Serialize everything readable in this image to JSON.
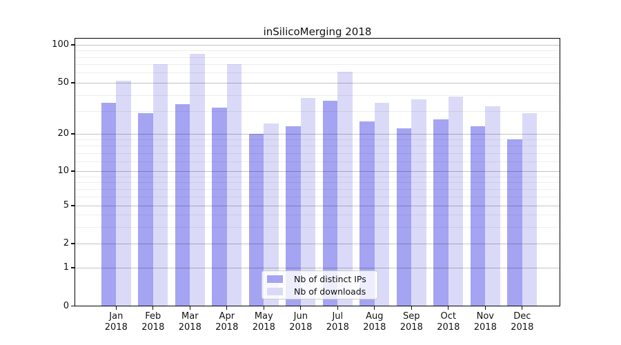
{
  "title": "inSilicoMerging 2018",
  "legend": {
    "entries": [
      {
        "label": "Nb of distinct IPs",
        "color": "#a4a4f2"
      },
      {
        "label": "Nb of downloads",
        "color": "#dadaf8"
      }
    ]
  },
  "chart_data": {
    "type": "bar",
    "title": "inSilicoMerging 2018",
    "categories": [
      "Jan",
      "Feb",
      "Mar",
      "Apr",
      "May",
      "Jun",
      "Jul",
      "Aug",
      "Sep",
      "Oct",
      "Nov",
      "Dec"
    ],
    "year_label": "2018",
    "series": [
      {
        "name": "Nb of distinct IPs",
        "color": "#a4a4f2",
        "values": [
          35,
          29,
          34,
          32,
          20,
          23,
          36,
          25,
          22,
          26,
          23,
          18
        ]
      },
      {
        "name": "Nb of downloads",
        "color": "#dadaf8",
        "values": [
          52,
          70,
          85,
          70,
          24,
          38,
          61,
          35,
          37,
          39,
          33,
          29
        ]
      }
    ],
    "y_axis": {
      "scale": "log-like (0,1,2,5,10,20,50,100)",
      "ticks": [
        0,
        1,
        2,
        5,
        10,
        20,
        50,
        100
      ],
      "minor_gridlines": [
        3,
        4,
        6,
        7,
        8,
        9,
        12,
        14,
        16,
        18,
        30,
        40,
        60,
        70,
        80,
        90
      ],
      "ylim": [
        0,
        100
      ]
    },
    "grid": "horizontal major+minor, drawn above bars",
    "legend_position": "lower center"
  }
}
